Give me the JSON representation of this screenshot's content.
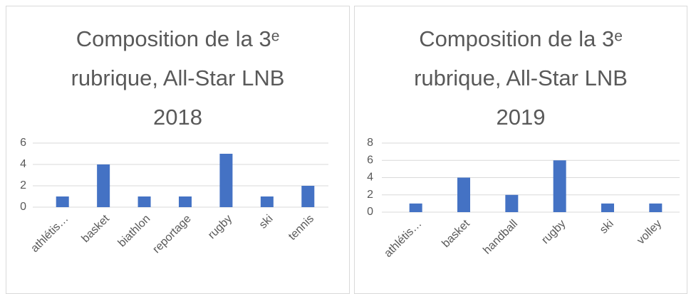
{
  "chart_data": [
    {
      "type": "bar",
      "title": "Composition de la 3ᵉ rubrique, All-Star LNB 2018",
      "categories": [
        "athlétis…",
        "basket",
        "biathlon",
        "reportage",
        "rugby",
        "ski",
        "tennis"
      ],
      "values": [
        1,
        4,
        1,
        1,
        5,
        1,
        2
      ],
      "color": "#4472c4",
      "ylim": [
        0,
        6
      ],
      "yticks": [
        0,
        2,
        4,
        6
      ],
      "grid": true
    },
    {
      "type": "bar",
      "title": "Composition de la 3ᵉ rubrique, All-Star LNB 2019",
      "categories": [
        "athlétis…",
        "basket",
        "handball",
        "rugby",
        "ski",
        "volley"
      ],
      "values": [
        1,
        4,
        2,
        6,
        1,
        1
      ],
      "color": "#4472c4",
      "ylim": [
        0,
        8
      ],
      "yticks": [
        0,
        2,
        4,
        6,
        8
      ],
      "grid": true
    }
  ]
}
